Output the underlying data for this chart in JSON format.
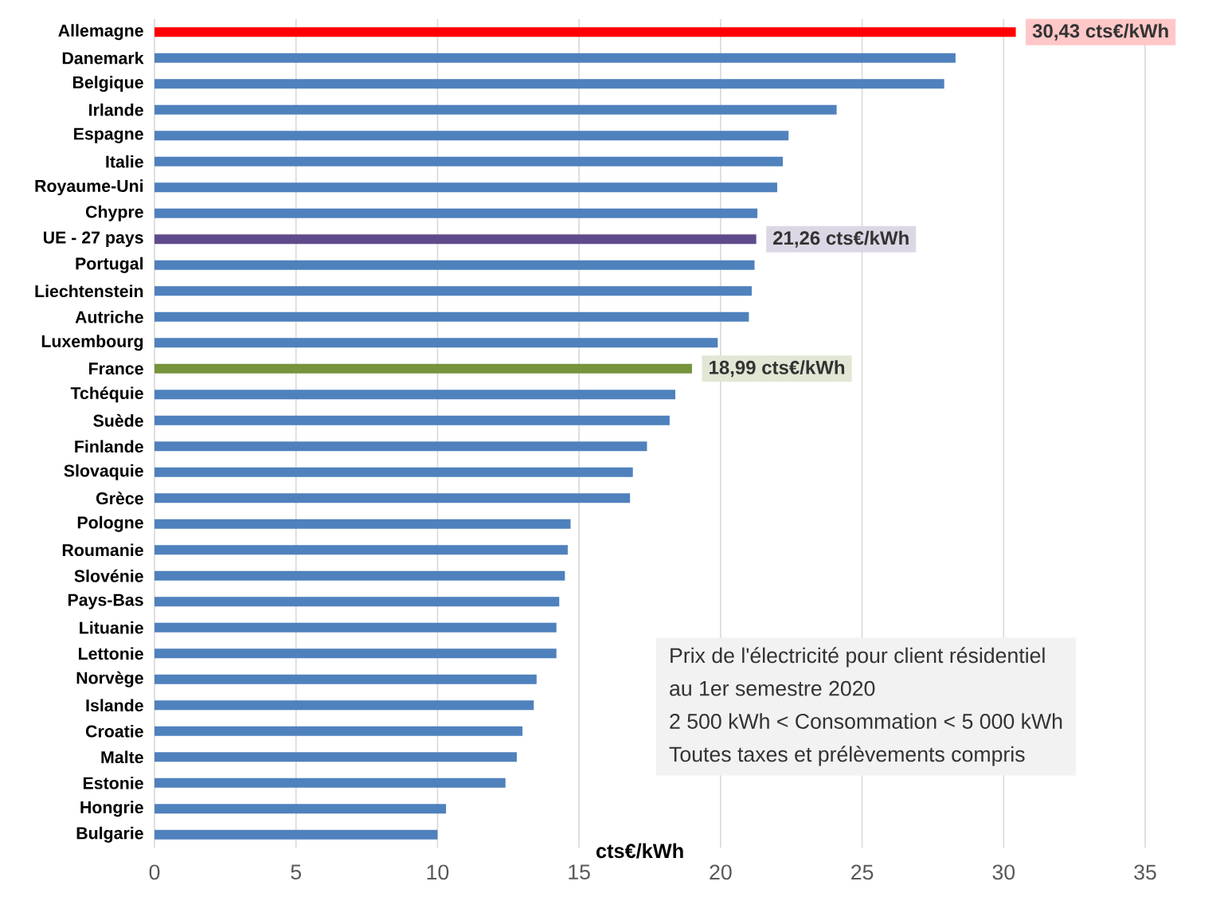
{
  "chart_data": {
    "type": "bar",
    "orientation": "horizontal",
    "categories": [
      "Allemagne",
      "Danemark",
      "Belgique",
      "Irlande",
      "Espagne",
      "Italie",
      "Royaume-Uni",
      "Chypre",
      "UE - 27 pays",
      "Portugal",
      "Liechtenstein",
      "Autriche",
      "Luxembourg",
      "France",
      "Tchéquie",
      "Suède",
      "Finlande",
      "Slovaquie",
      "Grèce",
      "Pologne",
      "Roumanie",
      "Slovénie",
      "Pays-Bas",
      "Lituanie",
      "Lettonie",
      "Norvège",
      "Islande",
      "Croatie",
      "Malte",
      "Estonie",
      "Hongrie",
      "Bulgarie"
    ],
    "values": [
      30.43,
      28.3,
      27.9,
      24.1,
      22.4,
      22.2,
      22.0,
      21.3,
      21.26,
      21.2,
      21.1,
      21.0,
      19.9,
      18.99,
      18.4,
      18.2,
      17.4,
      16.9,
      16.8,
      14.7,
      14.6,
      14.5,
      14.3,
      14.2,
      14.2,
      13.5,
      13.4,
      13.0,
      12.8,
      12.4,
      10.3,
      10.0
    ],
    "colors": [
      "#ff0000",
      "#4f81bd",
      "#4f81bd",
      "#4f81bd",
      "#4f81bd",
      "#4f81bd",
      "#4f81bd",
      "#4f81bd",
      "#5f4b8b",
      "#4f81bd",
      "#4f81bd",
      "#4f81bd",
      "#4f81bd",
      "#77933c",
      "#4f81bd",
      "#4f81bd",
      "#4f81bd",
      "#4f81bd",
      "#4f81bd",
      "#4f81bd",
      "#4f81bd",
      "#4f81bd",
      "#4f81bd",
      "#4f81bd",
      "#4f81bd",
      "#4f81bd",
      "#4f81bd",
      "#4f81bd",
      "#4f81bd",
      "#4f81bd",
      "#4f81bd",
      "#4f81bd"
    ],
    "value_labels": [
      "30,43 cts€/kWh",
      null,
      null,
      null,
      null,
      null,
      null,
      null,
      "21,26 cts€/kWh",
      null,
      null,
      null,
      null,
      "18,99 cts€/kWh",
      null,
      null,
      null,
      null,
      null,
      null,
      null,
      null,
      null,
      null,
      null,
      null,
      null,
      null,
      null,
      null,
      null,
      null
    ],
    "xlabel": "cts€/kWh",
    "xlim": [
      0,
      35
    ],
    "xticks": [
      0,
      5,
      10,
      15,
      20,
      25,
      30,
      35
    ],
    "grid": "x",
    "annotations": [
      "Prix de l'électricité pour client résidentiel",
      "au 1er semestre  2020",
      "2 500 kWh < Consommation < 5 000 kWh",
      "Toutes taxes et prélèvements compris"
    ]
  }
}
